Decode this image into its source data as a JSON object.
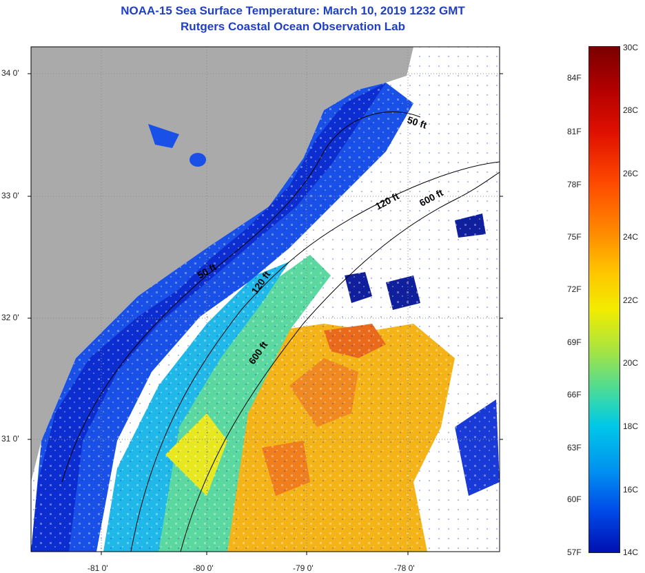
{
  "title": {
    "line1": "NOAA-15 Sea Surface Temperature:  March 10, 2019 1232 GMT",
    "line2": "Rutgers Coastal Ocean Observation Lab"
  },
  "map": {
    "lat_labels": [
      "34 0'",
      "33 0'",
      "32 0'",
      "31 0'"
    ],
    "lon_labels": [
      "-81 0'",
      "-80 0'",
      "-79 0'",
      "-78 0'"
    ],
    "contours": [
      "50 ft",
      "120 ft",
      "600 ft",
      "50 ft",
      "120 ft",
      "600 ft"
    ],
    "colors": {
      "land": "#aaaaaa",
      "cloud": "#ffffff",
      "contour": "#000000"
    }
  },
  "colorbar": {
    "celsius": [
      "30C",
      "28C",
      "26C",
      "24C",
      "22C",
      "20C",
      "18C",
      "16C",
      "14C"
    ],
    "fahrenheit": [
      "84F",
      "81F",
      "78F",
      "75F",
      "72F",
      "69F",
      "66F",
      "63F",
      "60F",
      "57F"
    ]
  }
}
